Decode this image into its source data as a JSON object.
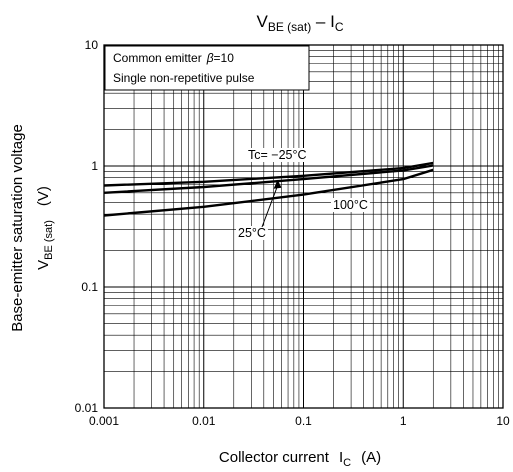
{
  "chart_data": {
    "type": "line",
    "title": {
      "main": "V",
      "main_sub": "BE (sat)",
      "sep": " – ",
      "second": "I",
      "second_sub": "C"
    },
    "xlabel": {
      "text": "Collector current",
      "sym": "I",
      "sub": "C",
      "unit": "(A)"
    },
    "ylabel": {
      "line1": "Base-emitter saturation voltage",
      "sym": "V",
      "sub": "BE (sat)",
      "unit": "(V)"
    },
    "x_scale": "log",
    "y_scale": "log",
    "xlim": [
      0.001,
      10
    ],
    "ylim": [
      0.01,
      10
    ],
    "x_ticks": [
      {
        "value": 0.001,
        "label": "0.001"
      },
      {
        "value": 0.01,
        "label": "0.01"
      },
      {
        "value": 0.1,
        "label": "0.1"
      },
      {
        "value": 1,
        "label": "1"
      },
      {
        "value": 10,
        "label": "10"
      }
    ],
    "y_ticks": [
      {
        "value": 0.01,
        "label": "0.01"
      },
      {
        "value": 0.1,
        "label": "0.1"
      },
      {
        "value": 1,
        "label": "1"
      },
      {
        "value": 10,
        "label": "10"
      }
    ],
    "grid": true,
    "legend_box": {
      "line1_a": "Common emitter",
      "beta_symbol": "β",
      "line1_b": "=10",
      "line2": "Single non-repetitive pulse"
    },
    "series": [
      {
        "name": "Tc= −25°C",
        "x": [
          0.001,
          0.01,
          0.1,
          1,
          2
        ],
        "y": [
          0.69,
          0.74,
          0.83,
          0.96,
          1.06
        ]
      },
      {
        "name": "25°C",
        "x": [
          0.001,
          0.01,
          0.1,
          1,
          2
        ],
        "y": [
          0.6,
          0.67,
          0.78,
          0.92,
          1.01
        ]
      },
      {
        "name": "100°C",
        "x": [
          0.001,
          0.01,
          0.1,
          1,
          2
        ],
        "y": [
          0.39,
          0.46,
          0.58,
          0.78,
          0.93
        ]
      }
    ]
  }
}
